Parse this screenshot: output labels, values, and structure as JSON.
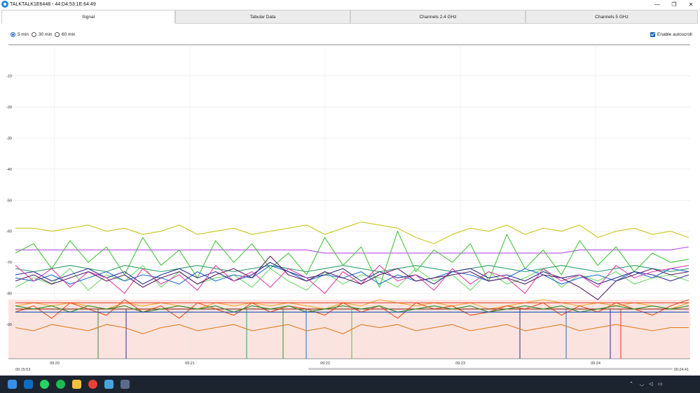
{
  "window": {
    "title": "TALKTALK1E6448 - 44:D4:53:1E:64:49",
    "minimize": "—",
    "maximize": "❐",
    "close": "✕"
  },
  "tabs": [
    {
      "label": "Signal",
      "active": true
    },
    {
      "label": "Tabular Data",
      "active": false
    },
    {
      "label": "Channels 2.4 GHz",
      "active": false
    },
    {
      "label": "Channels 5 GHz",
      "active": false
    }
  ],
  "time_range": {
    "options": [
      "5 min",
      "30 min",
      "60 min"
    ],
    "selected": "5 min"
  },
  "autoscroll": {
    "label": "Enable autoscroll",
    "checked": true
  },
  "colors": {
    "accent": "#1565c0",
    "threshold_fill": "#fbe4e0",
    "grid": "#e6e6e6"
  },
  "chart_data": {
    "type": "line",
    "y_ticks": [
      "-10",
      "-20",
      "-30",
      "-40",
      "-50",
      "-60",
      "-70",
      "-80",
      "-90"
    ],
    "ylim": [
      -101,
      0
    ],
    "x_ticks": [
      "09:20",
      "09:21",
      "09:22",
      "09:23",
      "09:24"
    ],
    "x_start": "09:15:53",
    "x_end": "09:24:41",
    "threshold_below": -82,
    "grid": true,
    "series": [
      {
        "color": "#c8c81e",
        "values": [
          -59,
          -59,
          -60,
          -59,
          -58,
          -60,
          -59,
          -61,
          -60,
          -58,
          -61,
          -60,
          -59,
          -61,
          -60,
          -59,
          -58,
          -61,
          -59,
          -57,
          -58,
          -59,
          -62,
          -64,
          -61,
          -59,
          -60,
          -58,
          -61,
          -59,
          -60,
          -58,
          -62,
          -60,
          -59,
          -61,
          -60,
          -62
        ]
      },
      {
        "color": "#b44fe0",
        "values": [
          -66,
          -66,
          -66,
          -66,
          -66,
          -66,
          -66,
          -66,
          -66,
          -66,
          -66,
          -66,
          -66,
          -66,
          -66,
          -66,
          -66,
          -67,
          -67,
          -67,
          -67,
          -67,
          -67,
          -67,
          -67,
          -67,
          -67,
          -67,
          -67,
          -67,
          -67,
          -66,
          -66,
          -66,
          -66,
          -66,
          -66,
          -65
        ]
      },
      {
        "color": "#48c43e",
        "values": [
          -67,
          -64,
          -72,
          -63,
          -70,
          -65,
          -74,
          -62,
          -71,
          -66,
          -75,
          -63,
          -70,
          -64,
          -72,
          -67,
          -74,
          -62,
          -71,
          -65,
          -78,
          -60,
          -73,
          -66,
          -70,
          -64,
          -76,
          -61,
          -72,
          -66,
          -74,
          -63,
          -71,
          -65,
          -73,
          -67,
          -70,
          -69
        ]
      },
      {
        "color": "#2ea06e",
        "values": [
          -72,
          -73,
          -72,
          -71,
          -72,
          -73,
          -71,
          -72,
          -73,
          -72,
          -71,
          -72,
          -73,
          -72,
          -71,
          -72,
          -73,
          -72,
          -71,
          -72,
          -73,
          -72,
          -71,
          -72,
          -73,
          -72,
          -71,
          -72,
          -73,
          -72,
          -71,
          -72,
          -73,
          -72,
          -71,
          -72,
          -73,
          -72
        ]
      },
      {
        "color": "#6fd86a",
        "values": [
          -78,
          -75,
          -77,
          -72,
          -79,
          -74,
          -76,
          -71,
          -78,
          -73,
          -77,
          -75,
          -74,
          -78,
          -72,
          -76,
          -79,
          -73,
          -77,
          -74,
          -75,
          -78,
          -72,
          -76,
          -74,
          -79,
          -73,
          -77,
          -75,
          -72,
          -78,
          -74,
          -76,
          -73,
          -77,
          -75,
          -74,
          -76
        ]
      },
      {
        "color": "#1e6fd0",
        "values": [
          -75,
          -76,
          -74,
          -77,
          -75,
          -73,
          -76,
          -74,
          -75,
          -77,
          -73,
          -76,
          -74,
          -75,
          -71,
          -73,
          -76,
          -74,
          -75,
          -73,
          -77,
          -74,
          -76,
          -75,
          -73,
          -74,
          -76,
          -75,
          -72,
          -74,
          -77,
          -75,
          -74,
          -76,
          -73,
          -75,
          -72,
          -73
        ]
      },
      {
        "color": "#2b2e8f",
        "values": [
          -74,
          -73,
          -76,
          -74,
          -72,
          -75,
          -73,
          -77,
          -74,
          -72,
          -75,
          -73,
          -76,
          -74,
          -70,
          -73,
          -75,
          -74,
          -72,
          -76,
          -73,
          -75,
          -74,
          -77,
          -73,
          -72,
          -75,
          -74,
          -76,
          -73,
          -75,
          -74,
          -77,
          -75,
          -73,
          -74,
          -76,
          -74
        ]
      },
      {
        "color": "#e040a8",
        "values": [
          -71,
          -76,
          -72,
          -78,
          -73,
          -75,
          -80,
          -72,
          -77,
          -74,
          -79,
          -71,
          -76,
          -73,
          -78,
          -72,
          -75,
          -80,
          -73,
          -77,
          -71,
          -76,
          -74,
          -79,
          -72,
          -77,
          -73,
          -75,
          -80,
          -72,
          -76,
          -74,
          -78,
          -71,
          -75,
          -73,
          -72,
          -71
        ]
      },
      {
        "color": "#5a1f66",
        "values": [
          -76,
          -74,
          -77,
          -75,
          -73,
          -76,
          -74,
          -78,
          -75,
          -73,
          -77,
          -74,
          -72,
          -75,
          -68,
          -74,
          -76,
          -73,
          -75,
          -77,
          -74,
          -72,
          -76,
          -75,
          -74,
          -73,
          -76,
          -75,
          -77,
          -74,
          -75,
          -78,
          -82,
          -76,
          -74,
          -72,
          -74,
          -73
        ]
      },
      {
        "color": "#f0a830",
        "values": [
          -84,
          -83,
          -84,
          -83,
          -84,
          -85,
          -83,
          -84,
          -83,
          -84,
          -85,
          -83,
          -84,
          -83,
          -84,
          -83,
          -84,
          -85,
          -83,
          -84,
          -82,
          -83,
          -84,
          -83,
          -84,
          -83,
          -85,
          -84,
          -83,
          -82,
          -83,
          -84,
          -83,
          -84,
          -83,
          -84,
          -85,
          -83
        ]
      },
      {
        "color": "#e8501e",
        "values": [
          -86,
          -84,
          -88,
          -83,
          -85,
          -87,
          -82,
          -86,
          -84,
          -88,
          -83,
          -85,
          -87,
          -83,
          -86,
          -84,
          -85,
          -87,
          -83,
          -86,
          -84,
          -88,
          -83,
          -85,
          -84,
          -87,
          -86,
          -84,
          -85,
          -83,
          -87,
          -84,
          -86,
          -83,
          -85,
          -87,
          -84,
          -82
        ]
      },
      {
        "color": "#e03a20",
        "values": [
          -83,
          -83,
          -83,
          -83,
          -83,
          -83,
          -83,
          -83,
          -83,
          -83,
          -83,
          -83,
          -83,
          -83,
          -83,
          -83,
          -83,
          -83,
          -83,
          -83,
          -83,
          -83,
          -83,
          -83,
          -83,
          -83,
          -83,
          -83,
          -83,
          -83,
          -83,
          -83,
          -83,
          -83,
          -83,
          -83,
          -83,
          -83
        ]
      },
      {
        "color": "#8a2a1a",
        "values": [
          -85,
          -85,
          -85,
          -85,
          -85,
          -85,
          -85,
          -85,
          -85,
          -85,
          -85,
          -85,
          -85,
          -85,
          -85,
          -85,
          -85,
          -85,
          -85,
          -85,
          -85,
          -85,
          -85,
          -85,
          -85,
          -85,
          -85,
          -85,
          -85,
          -85,
          -85,
          -85,
          -85,
          -85,
          -85,
          -85,
          -85,
          -85
        ]
      },
      {
        "color": "#2c8f2c",
        "values": [
          -84,
          -85,
          -84,
          -86,
          -84,
          -85,
          -84,
          -86,
          -85,
          -84,
          -85,
          -84,
          -86,
          -84,
          -85,
          -84,
          -86,
          -85,
          -84,
          -85,
          -84,
          -86,
          -85,
          -84,
          -85,
          -84,
          -86,
          -85,
          -84,
          -85,
          -84,
          -86,
          -85,
          -84,
          -85,
          -84,
          -85,
          -84
        ]
      },
      {
        "color": "#1e50b4",
        "values": [
          -86,
          -86,
          -86,
          -86,
          -86,
          -86,
          -86,
          -86,
          -86,
          -86,
          -86,
          -86,
          -86,
          -86,
          -86,
          -86,
          -86,
          -86,
          -86,
          -86,
          -86,
          -86,
          -86,
          -86,
          -86,
          -86,
          -86,
          -86,
          -86,
          -86,
          -86,
          -86,
          -86,
          -86,
          -86,
          -86,
          -86,
          -86
        ]
      },
      {
        "color": "#e07a1a",
        "values": [
          -91,
          -92,
          -90,
          -91,
          -92,
          -90,
          -91,
          -93,
          -91,
          -90,
          -92,
          -91,
          -90,
          -92,
          -91,
          -90,
          -92,
          -91,
          -93,
          -90,
          -91,
          -90,
          -92,
          -91,
          -90,
          -92,
          -91,
          -90,
          -92,
          -91,
          -90,
          -92,
          -91,
          -90,
          -91,
          -92,
          -91,
          -91
        ]
      }
    ]
  }
}
